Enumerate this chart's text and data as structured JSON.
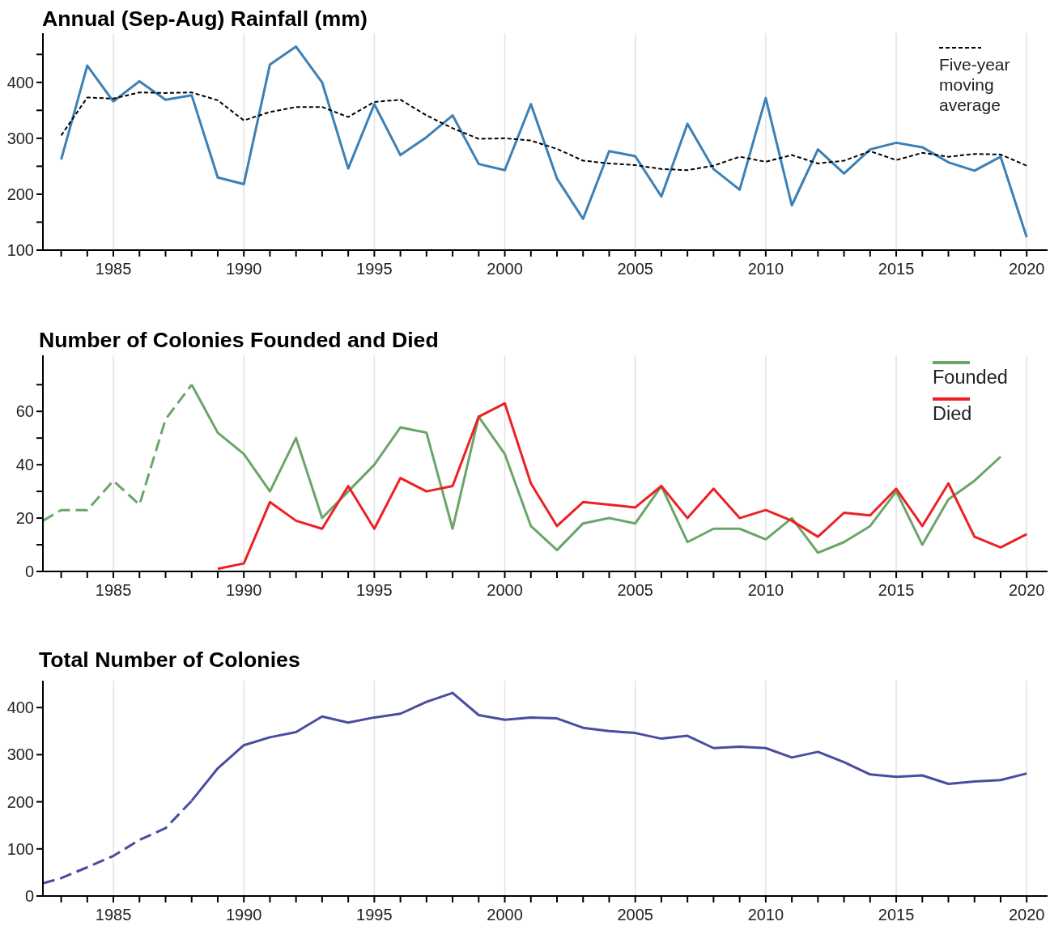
{
  "chart_data": [
    {
      "type": "line",
      "title": "Annual (Sep-Aug) Rainfall (mm)",
      "x": [
        1983,
        1984,
        1985,
        1986,
        1987,
        1988,
        1989,
        1990,
        1991,
        1992,
        1993,
        1994,
        1995,
        1996,
        1997,
        1998,
        1999,
        2000,
        2001,
        2002,
        2003,
        2004,
        2005,
        2006,
        2007,
        2008,
        2009,
        2010,
        2011,
        2012,
        2013,
        2014,
        2015,
        2016,
        2017,
        2018,
        2019,
        2020
      ],
      "series": [
        {
          "color": "#3c80b5",
          "values": [
            262,
            430,
            366,
            402,
            369,
            377,
            230,
            218,
            432,
            464,
            400,
            246,
            361,
            270,
            302,
            341,
            254,
            243,
            361,
            228,
            156,
            277,
            268,
            196,
            326,
            245,
            208,
            372,
            180,
            280,
            237,
            280,
            292,
            284,
            257,
            242,
            267,
            123
          ]
        },
        {
          "name": "Five-year moving average",
          "color": "#000000",
          "line_style": "dashed",
          "values": [
            305,
            373,
            371,
            382,
            381,
            382,
            368,
            332,
            347,
            356,
            356,
            338,
            365,
            369,
            341,
            318,
            299,
            300,
            296,
            281,
            260,
            255,
            252,
            245,
            243,
            251,
            267,
            258,
            270,
            255,
            260,
            277,
            261,
            274,
            267,
            272,
            271,
            251
          ]
        }
      ],
      "xlim": [
        1982.3,
        2020.8
      ],
      "xticks": [
        {
          "value": 1983,
          "label": null
        },
        {
          "value": 1984,
          "label": null
        },
        1985,
        {
          "value": 1986,
          "label": null
        },
        {
          "value": 1987,
          "label": null
        },
        {
          "value": 1988,
          "label": null
        },
        {
          "value": 1989,
          "label": null
        },
        1990,
        {
          "value": 1991,
          "label": null
        },
        {
          "value": 1992,
          "label": null
        },
        {
          "value": 1993,
          "label": null
        },
        {
          "value": 1994,
          "label": null
        },
        1995,
        {
          "value": 1996,
          "label": null
        },
        {
          "value": 1997,
          "label": null
        },
        {
          "value": 1998,
          "label": null
        },
        {
          "value": 1999,
          "label": null
        },
        2000,
        {
          "value": 2001,
          "label": null
        },
        {
          "value": 2002,
          "label": null
        },
        {
          "value": 2003,
          "label": null
        },
        {
          "value": 2004,
          "label": null
        },
        2005,
        {
          "value": 2006,
          "label": null
        },
        {
          "value": 2007,
          "label": null
        },
        {
          "value": 2008,
          "label": null
        },
        {
          "value": 2009,
          "label": null
        },
        2010,
        {
          "value": 2011,
          "label": null
        },
        {
          "value": 2012,
          "label": null
        },
        {
          "value": 2013,
          "label": null
        },
        {
          "value": 2014,
          "label": null
        },
        2015,
        {
          "value": 2016,
          "label": null
        },
        {
          "value": 2017,
          "label": null
        },
        {
          "value": 2018,
          "label": null
        },
        {
          "value": 2019,
          "label": null
        },
        2020
      ],
      "ylim": [
        100,
        488
      ],
      "yticks": [
        100,
        {
          "value": 150,
          "label": null
        },
        200,
        {
          "value": 250,
          "label": null
        },
        300,
        {
          "value": 350,
          "label": null
        },
        400,
        {
          "value": 450,
          "label": null
        }
      ],
      "grid": "x",
      "legend": "top right"
    },
    {
      "type": "line",
      "title": "Number of Colonies Founded and Died",
      "series": [
        {
          "color": "#6aa56a",
          "line_style": "dashed",
          "x": [
            1982.3,
            1983,
            1984,
            1985,
            1986,
            1987,
            1988
          ],
          "values": [
            19,
            23,
            23,
            34,
            25,
            57,
            70
          ]
        },
        {
          "name": "Founded",
          "color": "#6aa56a",
          "x": [
            1988,
            1989,
            1990,
            1991,
            1992,
            1993,
            1994,
            1995,
            1996,
            1997,
            1998,
            1999,
            2000,
            2001,
            2002,
            2003,
            2004,
            2005,
            2006,
            2007,
            2008,
            2009,
            2010,
            2011,
            2012,
            2013,
            2014,
            2015,
            2016,
            2017,
            2018,
            2019
          ],
          "values": [
            70,
            52,
            44,
            30,
            50,
            20,
            30,
            40,
            54,
            52,
            16,
            58,
            44,
            17,
            8,
            18,
            20,
            18,
            32,
            11,
            16,
            16,
            12,
            20,
            7,
            11,
            17,
            30,
            10,
            27,
            34,
            43
          ]
        },
        {
          "name": "Died",
          "color": "#ed2024",
          "x": [
            1989,
            1990,
            1991,
            1992,
            1993,
            1994,
            1995,
            1996,
            1997,
            1998,
            1999,
            2000,
            2001,
            2002,
            2003,
            2004,
            2005,
            2006,
            2007,
            2008,
            2009,
            2010,
            2011,
            2012,
            2013,
            2014,
            2015,
            2016,
            2017,
            2018,
            2019,
            2020
          ],
          "values": [
            1,
            3,
            26,
            19,
            16,
            32,
            16,
            35,
            30,
            32,
            58,
            63,
            33,
            17,
            26,
            25,
            24,
            32,
            20,
            31,
            20,
            23,
            19,
            13,
            22,
            21,
            31,
            17,
            33,
            13,
            9,
            14
          ]
        }
      ],
      "xlim": [
        1982.3,
        2020.8
      ],
      "xticks": [
        {
          "value": 1983,
          "label": null
        },
        {
          "value": 1984,
          "label": null
        },
        1985,
        {
          "value": 1986,
          "label": null
        },
        {
          "value": 1987,
          "label": null
        },
        {
          "value": 1988,
          "label": null
        },
        {
          "value": 1989,
          "label": null
        },
        1990,
        {
          "value": 1991,
          "label": null
        },
        {
          "value": 1992,
          "label": null
        },
        {
          "value": 1993,
          "label": null
        },
        {
          "value": 1994,
          "label": null
        },
        1995,
        {
          "value": 1996,
          "label": null
        },
        {
          "value": 1997,
          "label": null
        },
        {
          "value": 1998,
          "label": null
        },
        {
          "value": 1999,
          "label": null
        },
        2000,
        {
          "value": 2001,
          "label": null
        },
        {
          "value": 2002,
          "label": null
        },
        {
          "value": 2003,
          "label": null
        },
        {
          "value": 2004,
          "label": null
        },
        2005,
        {
          "value": 2006,
          "label": null
        },
        {
          "value": 2007,
          "label": null
        },
        {
          "value": 2008,
          "label": null
        },
        {
          "value": 2009,
          "label": null
        },
        2010,
        {
          "value": 2011,
          "label": null
        },
        {
          "value": 2012,
          "label": null
        },
        {
          "value": 2013,
          "label": null
        },
        {
          "value": 2014,
          "label": null
        },
        2015,
        {
          "value": 2016,
          "label": null
        },
        {
          "value": 2017,
          "label": null
        },
        {
          "value": 2018,
          "label": null
        },
        {
          "value": 2019,
          "label": null
        },
        2020
      ],
      "ylim": [
        0,
        81
      ],
      "yticks": [
        0,
        {
          "value": 10,
          "label": null
        },
        20,
        {
          "value": 30,
          "label": null
        },
        40,
        {
          "value": 50,
          "label": null
        },
        60,
        {
          "value": 70,
          "label": null
        }
      ],
      "grid": "x",
      "legend": "top right"
    },
    {
      "type": "line",
      "title": "Total Number of Colonies",
      "series": [
        {
          "color": "#4a4d9f",
          "line_style": "dashed",
          "x": [
            1982.3,
            1983,
            1984,
            1985,
            1986,
            1987,
            1988
          ],
          "values": [
            27,
            38,
            61,
            85,
            119,
            144,
            202
          ]
        },
        {
          "color": "#4a4d9f",
          "x": [
            1988,
            1989,
            1990,
            1991,
            1992,
            1993,
            1994,
            1995,
            1996,
            1997,
            1998,
            1999,
            2000,
            2001,
            2002,
            2003,
            2004,
            2005,
            2006,
            2007,
            2008,
            2009,
            2010,
            2011,
            2012,
            2013,
            2014,
            2015,
            2016,
            2017,
            2018,
            2019,
            2020
          ],
          "values": [
            202,
            271,
            320,
            337,
            348,
            381,
            368,
            379,
            387,
            412,
            431,
            384,
            374,
            379,
            377,
            357,
            350,
            346,
            334,
            340,
            314,
            317,
            314,
            294,
            306,
            284,
            258,
            253,
            256,
            238,
            243,
            246,
            260
          ]
        }
      ],
      "xlim": [
        1982.3,
        2020.8
      ],
      "xticks": [
        {
          "value": 1983,
          "label": null
        },
        {
          "value": 1984,
          "label": null
        },
        1985,
        {
          "value": 1986,
          "label": null
        },
        {
          "value": 1987,
          "label": null
        },
        {
          "value": 1988,
          "label": null
        },
        {
          "value": 1989,
          "label": null
        },
        1990,
        {
          "value": 1991,
          "label": null
        },
        {
          "value": 1992,
          "label": null
        },
        {
          "value": 1993,
          "label": null
        },
        {
          "value": 1994,
          "label": null
        },
        1995,
        {
          "value": 1996,
          "label": null
        },
        {
          "value": 1997,
          "label": null
        },
        {
          "value": 1998,
          "label": null
        },
        {
          "value": 1999,
          "label": null
        },
        2000,
        {
          "value": 2001,
          "label": null
        },
        {
          "value": 2002,
          "label": null
        },
        {
          "value": 2003,
          "label": null
        },
        {
          "value": 2004,
          "label": null
        },
        2005,
        {
          "value": 2006,
          "label": null
        },
        {
          "value": 2007,
          "label": null
        },
        {
          "value": 2008,
          "label": null
        },
        {
          "value": 2009,
          "label": null
        },
        2010,
        {
          "value": 2011,
          "label": null
        },
        {
          "value": 2012,
          "label": null
        },
        {
          "value": 2013,
          "label": null
        },
        {
          "value": 2014,
          "label": null
        },
        2015,
        {
          "value": 2016,
          "label": null
        },
        {
          "value": 2017,
          "label": null
        },
        {
          "value": 2018,
          "label": null
        },
        {
          "value": 2019,
          "label": null
        },
        2020
      ],
      "ylim": [
        0,
        457
      ],
      "yticks": [
        0,
        100,
        200,
        300,
        400
      ],
      "grid": "x"
    }
  ]
}
